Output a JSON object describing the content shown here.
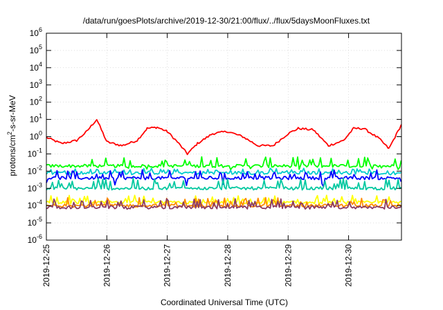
{
  "chart_data": {
    "type": "line",
    "title": "/data/run/goesPlots/archive/2019-12-30/21:00/flux/../flux/5daysMoonFluxes.txt",
    "xlabel": "Coordinated Universal Time (UTC)",
    "ylabel": "protons/cm2-s-sr-MeV",
    "ylabel_parts": {
      "base": "protons/cm",
      "sup": "2",
      "rest": "-s-sr-MeV"
    },
    "yscale": "log",
    "ylim": [
      1e-06,
      1000000.0
    ],
    "y_ticks": [
      {
        "value": 1e-06,
        "base": "10",
        "exp": "-6"
      },
      {
        "value": 1e-05,
        "base": "10",
        "exp": "-5"
      },
      {
        "value": 0.0001,
        "base": "10",
        "exp": "-4"
      },
      {
        "value": 0.001,
        "base": "10",
        "exp": "-3"
      },
      {
        "value": 0.01,
        "base": "10",
        "exp": "-2"
      },
      {
        "value": 0.1,
        "base": "10",
        "exp": "-1"
      },
      {
        "value": 1,
        "base": "10",
        "exp": "0"
      },
      {
        "value": 10.0,
        "base": "10",
        "exp": "1"
      },
      {
        "value": 100.0,
        "base": "10",
        "exp": "2"
      },
      {
        "value": 1000.0,
        "base": "10",
        "exp": "3"
      },
      {
        "value": 10000.0,
        "base": "10",
        "exp": "4"
      },
      {
        "value": 100000.0,
        "base": "10",
        "exp": "5"
      },
      {
        "value": 1000000.0,
        "base": "10",
        "exp": "6"
      }
    ],
    "xlim": [
      "2019-12-25 00:00",
      "2019-12-30 21:00"
    ],
    "x_ticks": [
      "2019-12-25",
      "2019-12-26",
      "2019-12-27",
      "2019-12-28",
      "2019-12-29",
      "2019-12-30"
    ],
    "grid": true,
    "legend": "none",
    "series": [
      {
        "color": "#ff0000",
        "x": [
          "2019-12-25 00:00",
          "2019-12-25 06:00",
          "2019-12-25 12:00",
          "2019-12-25 16:00",
          "2019-12-25 20:00",
          "2019-12-26 00:00",
          "2019-12-26 06:00",
          "2019-12-26 12:00",
          "2019-12-26 16:00",
          "2019-12-26 20:00",
          "2019-12-27 00:00",
          "2019-12-27 04:00",
          "2019-12-27 08:00",
          "2019-12-27 12:00",
          "2019-12-27 18:00",
          "2019-12-28 00:00",
          "2019-12-28 06:00",
          "2019-12-28 12:00",
          "2019-12-28 18:00",
          "2019-12-29 00:00",
          "2019-12-29 04:00",
          "2019-12-29 10:00",
          "2019-12-29 16:00",
          "2019-12-29 22:00",
          "2019-12-30 02:00",
          "2019-12-30 06:00",
          "2019-12-30 12:00",
          "2019-12-30 16:00",
          "2019-12-30 21:00"
        ],
        "values": [
          0.9,
          0.4,
          0.6,
          2,
          10,
          0.5,
          0.3,
          0.6,
          3,
          3.5,
          2,
          0.5,
          0.1,
          0.4,
          1.5,
          2,
          1,
          0.3,
          0.3,
          1.5,
          3,
          2.5,
          0.3,
          0.6,
          3,
          3,
          0.8,
          0.2,
          5
        ]
      },
      {
        "color": "#00ff00",
        "x": [
          "2019-12-25 00:00",
          "2019-12-30 21:00"
        ],
        "values": [
          0.02,
          0.02
        ],
        "band": [
          0.012,
          0.07
        ]
      },
      {
        "color": "#00cccc",
        "x": [
          "2019-12-25 00:00",
          "2019-12-30 21:00"
        ],
        "values": [
          0.008,
          0.008
        ],
        "band": [
          0.006,
          0.015
        ]
      },
      {
        "color": "#0000ff",
        "x": [
          "2019-12-25 00:00",
          "2019-12-30 21:00"
        ],
        "values": [
          0.004,
          0.004
        ],
        "band": [
          0.0012,
          0.012
        ]
      },
      {
        "color": "#00c8a0",
        "x": [
          "2019-12-25 00:00",
          "2019-12-30 21:00"
        ],
        "values": [
          0.001,
          0.001
        ],
        "band": [
          0.0009,
          0.004
        ]
      },
      {
        "color": "#ffff00",
        "x": [
          "2019-12-25 00:00",
          "2019-12-30 21:00"
        ],
        "values": [
          0.00015,
          0.00015
        ],
        "band": [
          0.00012,
          0.0004
        ]
      },
      {
        "color": "#ff8c00",
        "x": [
          "2019-12-25 00:00",
          "2019-12-30 21:00"
        ],
        "values": [
          0.0001,
          0.0001
        ],
        "band": [
          9e-05,
          0.0003
        ]
      },
      {
        "color": "#8b3a62",
        "x": [
          "2019-12-25 00:00",
          "2019-12-30 21:00"
        ],
        "values": [
          8e-05,
          8e-05
        ],
        "band": [
          6e-05,
          0.00025
        ]
      }
    ]
  }
}
